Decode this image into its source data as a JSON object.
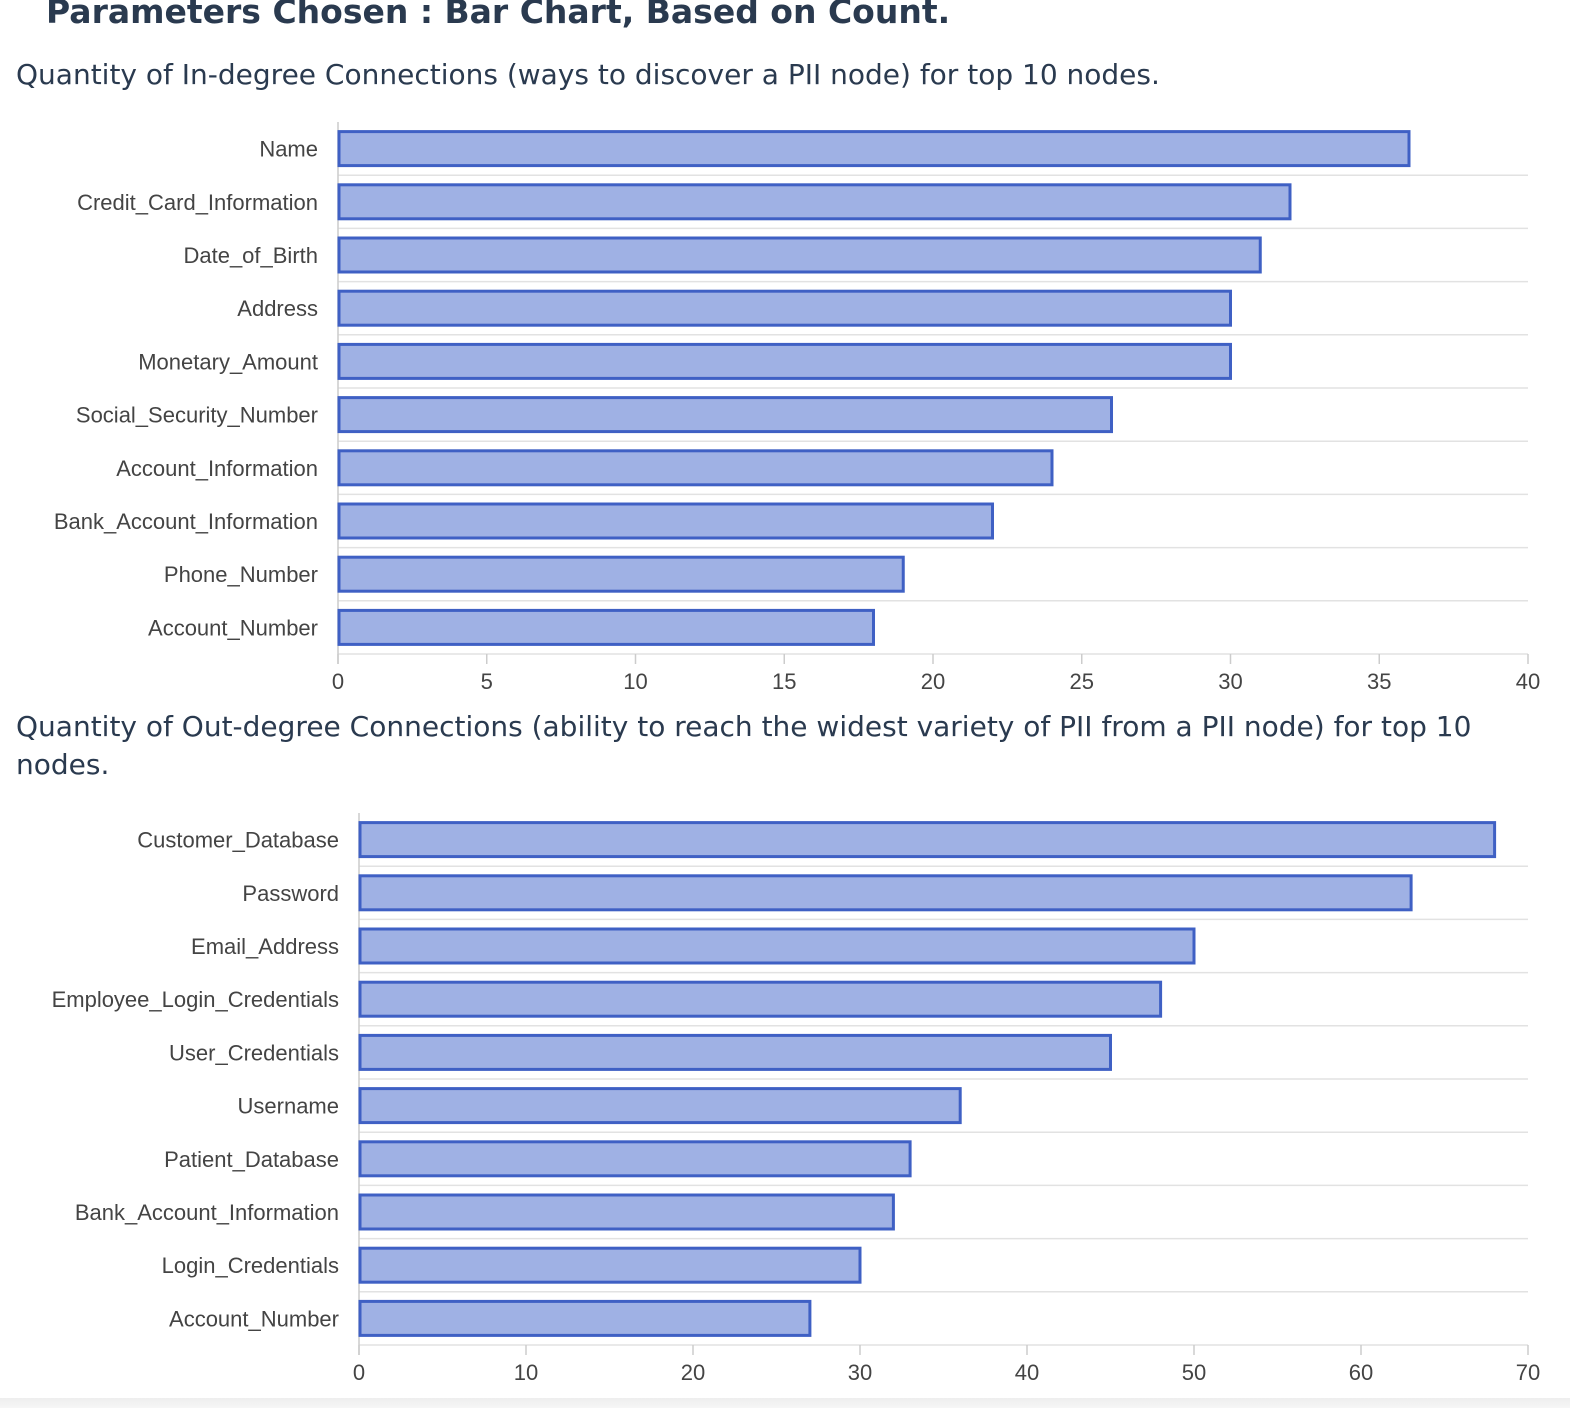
{
  "page": {
    "title": "Parameters Chosen : Bar Chart, Based on Count."
  },
  "colors": {
    "bar_fill": "#9fb1e4",
    "bar_stroke": "#3f60c4",
    "grid": "#e2e2e2",
    "axis": "#cccccc",
    "text": "#2a3a4f",
    "label": "#444444"
  },
  "chart_data": [
    {
      "type": "bar",
      "orientation": "horizontal",
      "title": "Quantity of In-degree Connections (ways to discover a PII node) for top 10 nodes.",
      "categories": [
        "Name",
        "Credit_Card_Information",
        "Date_of_Birth",
        "Address",
        "Monetary_Amount",
        "Social_Security_Number",
        "Account_Information",
        "Bank_Account_Information",
        "Phone_Number",
        "Account_Number"
      ],
      "values": [
        36,
        32,
        31,
        30,
        30,
        26,
        24,
        22,
        19,
        18
      ],
      "xticks": [
        0,
        5,
        10,
        15,
        20,
        25,
        30,
        35,
        40
      ],
      "xlim": [
        0,
        40
      ],
      "grid": true,
      "xlabel": "",
      "ylabel": ""
    },
    {
      "type": "bar",
      "orientation": "horizontal",
      "title": "Quantity of Out-degree Connections (ability to reach the widest variety of PII from a PII node) for top 10 nodes.",
      "categories": [
        "Customer_Database",
        "Password",
        "Email_Address",
        "Employee_Login_Credentials",
        "User_Credentials",
        "Username",
        "Patient_Database",
        "Bank_Account_Information",
        "Login_Credentials",
        "Account_Number"
      ],
      "values": [
        68,
        63,
        50,
        48,
        45,
        36,
        33,
        32,
        30,
        27
      ],
      "xticks": [
        0,
        10,
        20,
        30,
        40,
        50,
        60,
        70
      ],
      "xlim": [
        0,
        70
      ],
      "grid": true,
      "xlabel": "",
      "ylabel": ""
    }
  ]
}
